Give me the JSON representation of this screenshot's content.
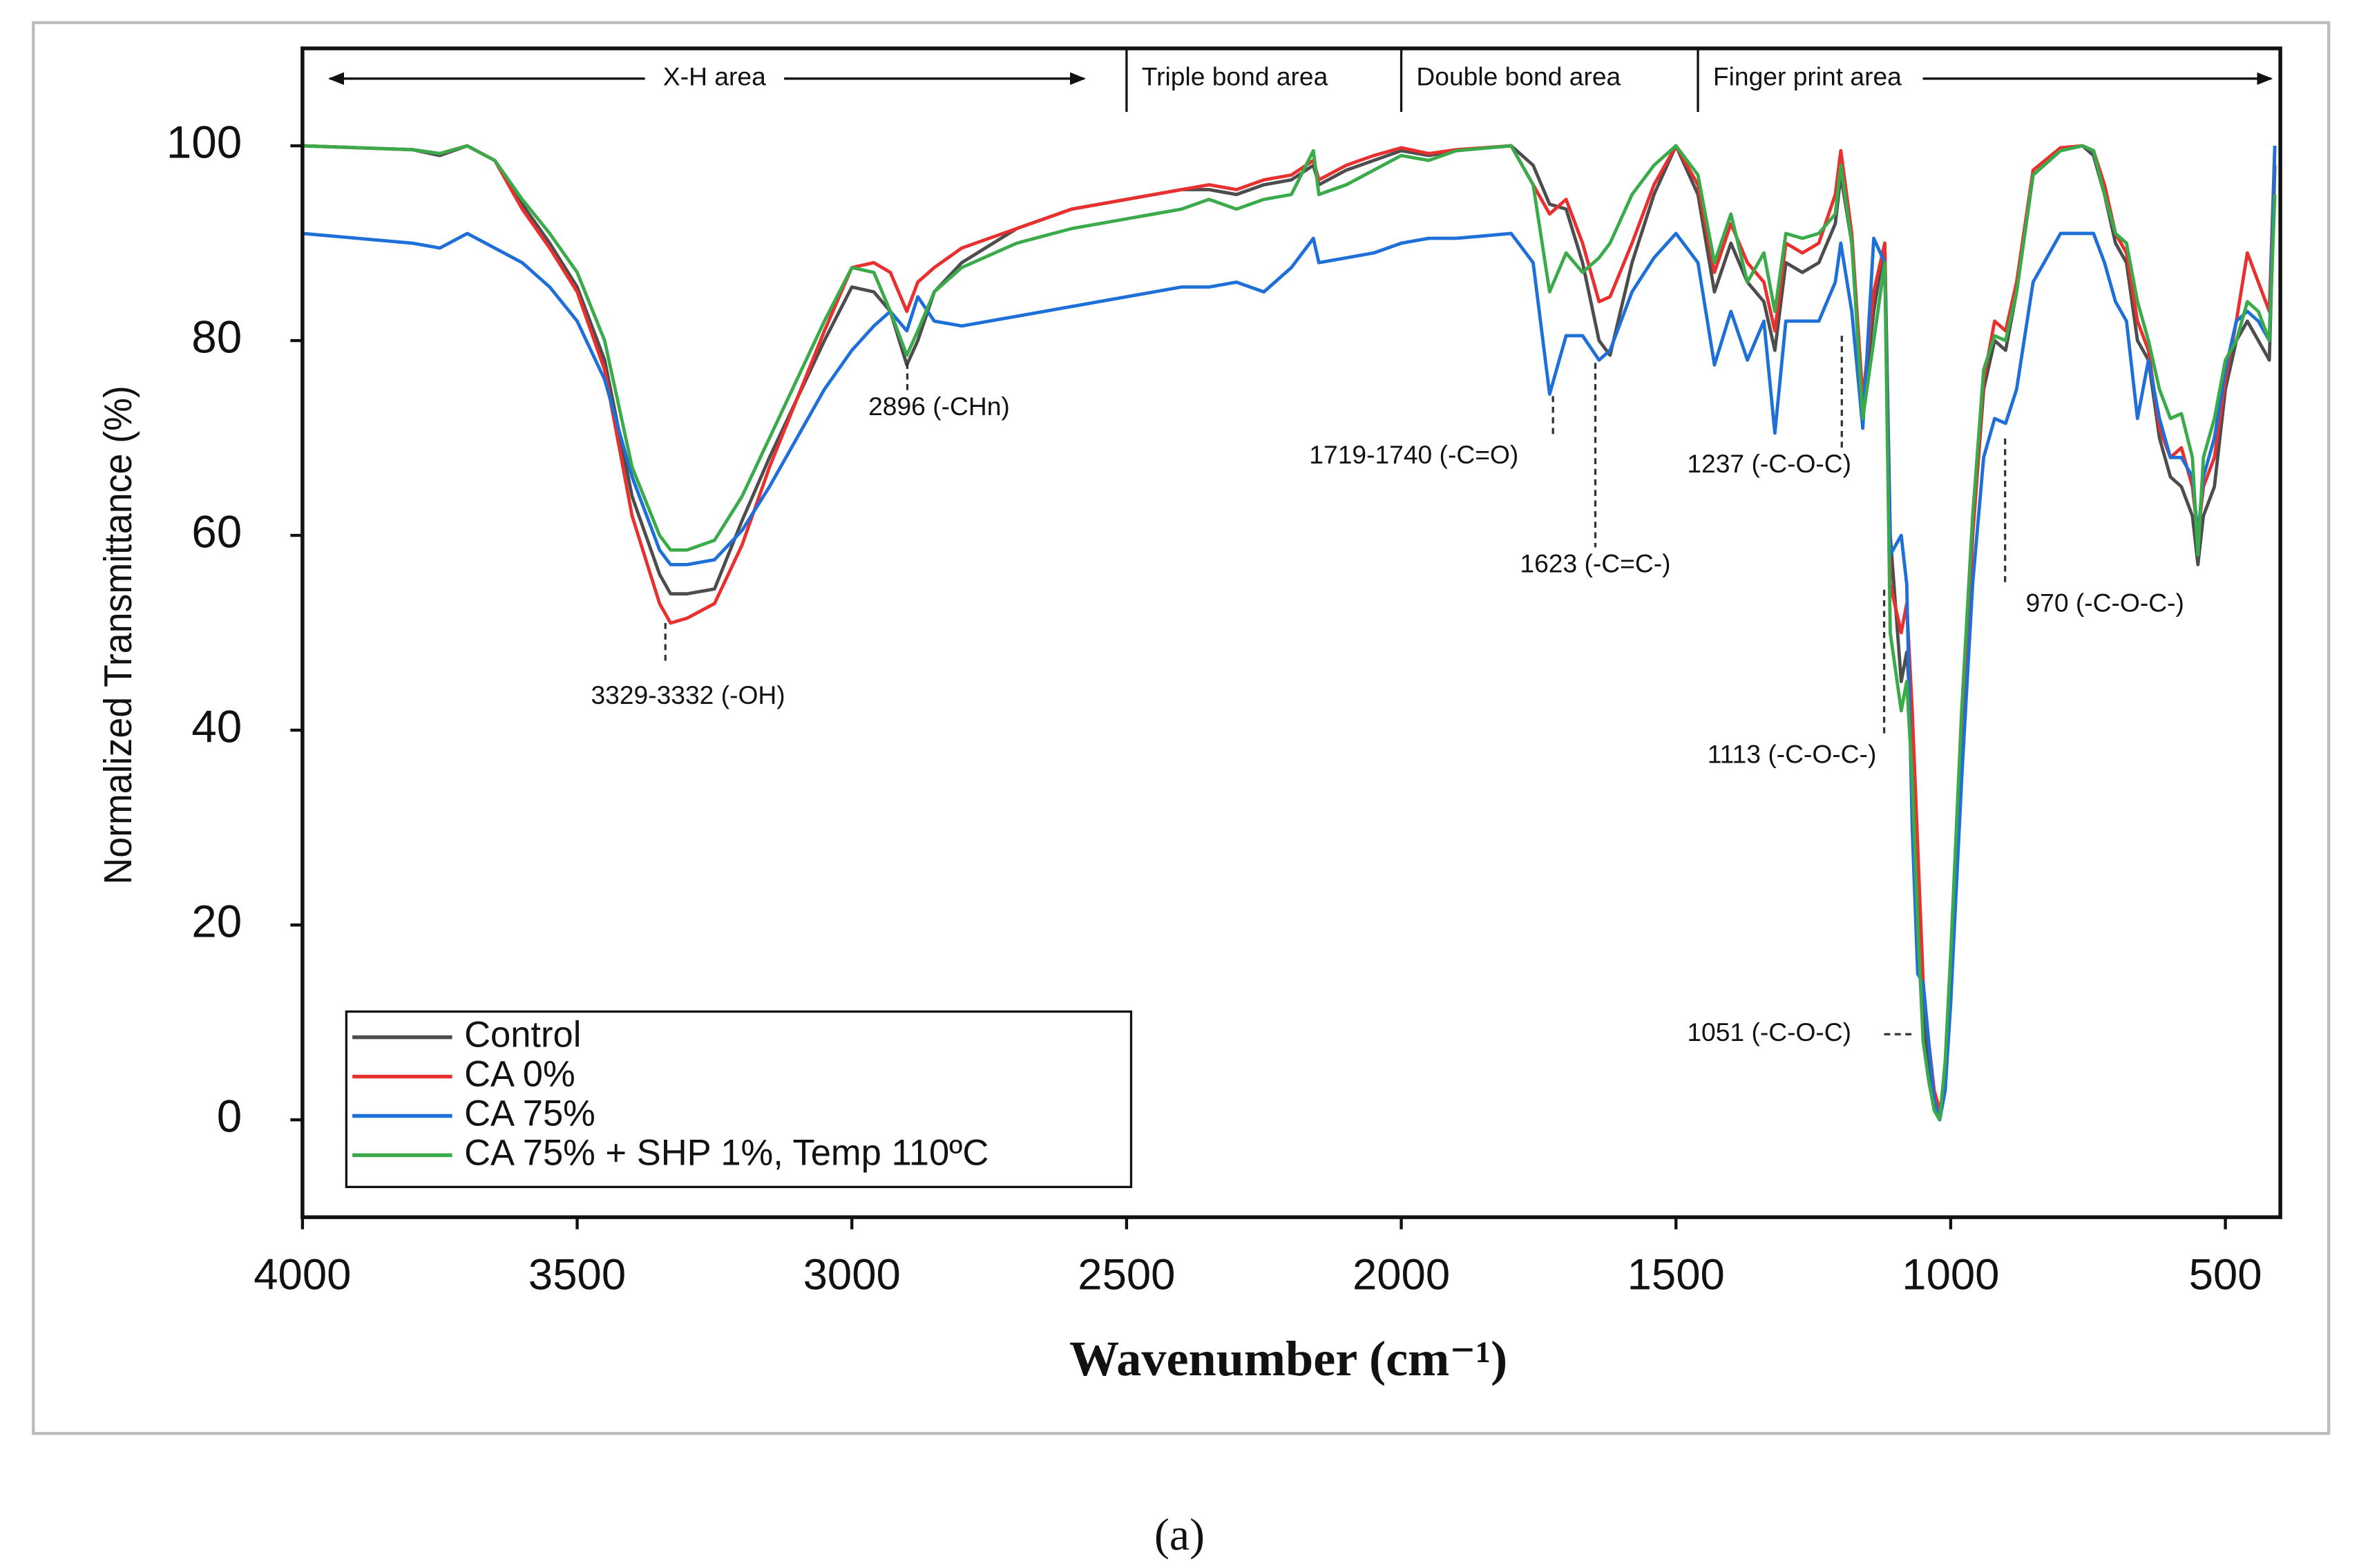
{
  "chart_data": {
    "type": "line",
    "x_label": "Wavenumber (cm⁻¹)",
    "y_label": "Normalized Transmittance (%)",
    "caption": "(a)",
    "xlim": [
      4000,
      400
    ],
    "ylim": [
      -10,
      110
    ],
    "xticks": [
      4000,
      3500,
      3000,
      2500,
      2000,
      1500,
      1000,
      500
    ],
    "yticks": [
      0,
      20,
      40,
      60,
      80,
      100
    ],
    "legend": "lower left",
    "regions": [
      {
        "label": "X-H area",
        "from": 4000,
        "to": 2500
      },
      {
        "label": "Triple bond area",
        "from": 2500,
        "to": 2000
      },
      {
        "label": "Double bond area",
        "from": 2000,
        "to": 1460
      },
      {
        "label": "Finger print area",
        "from": 1460,
        "to": 400
      }
    ],
    "annotations": [
      "3329-3332 (-OH)",
      "2896 (-CHn)",
      "1719-1740 (-C=O)",
      "1623 (-C=C-)",
      "1237 (-C-O-C)",
      "1113 (-C-O-C-)",
      "1051 (-C-O-C)",
      "970 (-C-O-C-)"
    ],
    "x": [
      4000,
      3900,
      3800,
      3750,
      3700,
      3650,
      3600,
      3550,
      3500,
      3450,
      3400,
      3350,
      3330,
      3300,
      3250,
      3200,
      3150,
      3100,
      3050,
      3000,
      2960,
      2930,
      2900,
      2880,
      2850,
      2800,
      2700,
      2600,
      2500,
      2400,
      2350,
      2300,
      2250,
      2200,
      2160,
      2150,
      2100,
      2050,
      2000,
      1950,
      1900,
      1800,
      1760,
      1730,
      1700,
      1670,
      1640,
      1620,
      1580,
      1540,
      1500,
      1460,
      1430,
      1400,
      1370,
      1340,
      1320,
      1300,
      1270,
      1240,
      1210,
      1200,
      1180,
      1160,
      1140,
      1120,
      1110,
      1090,
      1080,
      1070,
      1060,
      1050,
      1040,
      1030,
      1020,
      1010,
      1000,
      980,
      960,
      940,
      920,
      900,
      880,
      850,
      800,
      760,
      740,
      720,
      700,
      680,
      660,
      640,
      620,
      600,
      580,
      560,
      550,
      540,
      520,
      500,
      480,
      460,
      440,
      420,
      410
    ],
    "series": [
      {
        "name": "Control",
        "color": "#4d4d4d",
        "values": [
          100,
          99.8,
          99.6,
          99,
          100,
          98.5,
          94,
          90,
          85.5,
          78,
          64,
          56,
          54,
          54,
          54.5,
          61.5,
          68,
          74,
          80,
          85.5,
          85,
          83,
          77.5,
          80,
          85,
          88,
          91.5,
          93.5,
          94.5,
          95.5,
          95.5,
          95,
          96,
          96.5,
          98,
          96,
          97.5,
          98.5,
          99.5,
          99,
          99.5,
          100,
          98,
          94,
          93.5,
          88,
          80,
          78.5,
          88,
          95,
          100,
          95,
          85,
          90,
          86,
          84,
          79,
          88,
          87,
          88,
          92,
          97,
          90,
          73,
          83,
          90,
          60,
          45,
          48,
          40,
          25,
          12,
          5,
          1,
          0,
          5,
          15,
          40,
          60,
          75,
          80,
          79,
          85,
          97,
          99.5,
          100,
          99,
          95,
          90,
          88,
          80,
          78,
          70,
          66,
          65,
          62,
          57,
          62,
          65,
          75,
          80,
          82,
          80,
          78,
          98
        ]
      },
      {
        "name": "CA 0%",
        "color": "#e8302f",
        "values": [
          100,
          99.8,
          99.6,
          99.2,
          100,
          98.5,
          93.5,
          89.5,
          85,
          77,
          62,
          53,
          51,
          51.5,
          53,
          59,
          67,
          74,
          81,
          87.5,
          88,
          87,
          83,
          86,
          87.5,
          89.5,
          91.5,
          93.5,
          94.5,
          95.5,
          96,
          95.5,
          96.5,
          97,
          98.5,
          96.5,
          98,
          99,
          99.8,
          99.2,
          99.6,
          100,
          96,
          93,
          94.5,
          90,
          84,
          84.5,
          90,
          96,
          100,
          96,
          87,
          92,
          88,
          86,
          81,
          90,
          89,
          90,
          95,
          99.5,
          91,
          74,
          85,
          90,
          55,
          50,
          53,
          42,
          28,
          14,
          8,
          3,
          1,
          4,
          12,
          38,
          60,
          76,
          82,
          81,
          86,
          97.5,
          99.8,
          100,
          99.5,
          96,
          91,
          89,
          82,
          79,
          71,
          68,
          69,
          65,
          60,
          65,
          68,
          76,
          82,
          89,
          86,
          83,
          100
        ]
      },
      {
        "name": "CA 75%",
        "color": "#1f6fd8",
        "values": [
          91,
          90.5,
          90,
          89.5,
          91,
          89.5,
          88,
          85.5,
          82,
          76,
          66,
          58.5,
          57,
          57,
          57.5,
          60.5,
          65,
          70,
          75,
          79,
          81.5,
          83,
          81,
          84.5,
          82,
          81.5,
          82.5,
          83.5,
          84.5,
          85.5,
          85.5,
          86,
          85,
          87.5,
          90.5,
          88,
          88.5,
          89,
          90,
          90.5,
          90.5,
          91,
          88,
          74.5,
          80.5,
          80.5,
          78,
          79,
          85,
          88.5,
          91,
          88,
          77.5,
          83,
          78,
          82,
          70.5,
          82,
          82,
          82,
          86,
          90,
          83,
          71,
          90.5,
          88,
          58,
          60,
          55,
          30,
          15,
          14,
          8,
          2,
          0,
          3,
          12,
          35,
          55,
          68,
          72,
          71.5,
          75,
          86,
          91,
          91,
          91,
          88,
          84,
          82,
          72,
          78,
          72,
          68,
          68,
          66,
          60,
          66,
          70,
          77,
          82,
          83,
          82,
          80,
          100
        ]
      },
      {
        "name": "CA 75% + SHP 1%, Temp 110ºC",
        "color": "#3aaa4a",
        "values": [
          100,
          99.8,
          99.6,
          99.2,
          100,
          98.5,
          94.5,
          91,
          87,
          80,
          67,
          60,
          58.5,
          58.5,
          59.5,
          64,
          70,
          76,
          82,
          87.5,
          87,
          83,
          78.5,
          81,
          85,
          87.5,
          90,
          91.5,
          92.5,
          93.5,
          94.5,
          93.5,
          94.5,
          95,
          99.5,
          95,
          96,
          97.5,
          99,
          98.5,
          99.5,
          100,
          96,
          85,
          89,
          87,
          88.5,
          90,
          95,
          98,
          100,
          97,
          88,
          93,
          86,
          89,
          83,
          91,
          90.5,
          91,
          93,
          98,
          90,
          72,
          80,
          88,
          50,
          42,
          45,
          35,
          20,
          8,
          4,
          1,
          0,
          6,
          17,
          42,
          62,
          77,
          80.5,
          80,
          85,
          97,
          99.5,
          100,
          99.5,
          95,
          91,
          90,
          84,
          80,
          75,
          72,
          72.5,
          68,
          58,
          68,
          72,
          78,
          80,
          84,
          83,
          80,
          95
        ]
      }
    ]
  }
}
